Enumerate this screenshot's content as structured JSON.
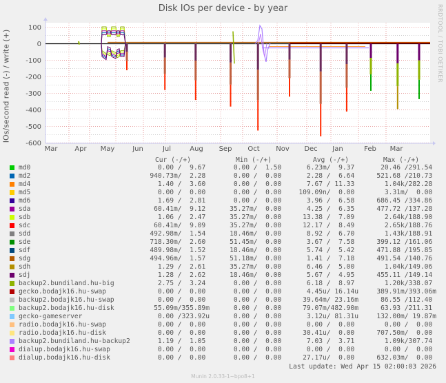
{
  "title": "Disk IOs per device - by year",
  "watermark": "RRDTOOL / TOBI OETIKER",
  "footer": "Munin 2.0.33-1~bpo8+1",
  "last_update": "Last update: Wed Apr 15 02:00:03 2026",
  "legend_headers": {
    "cur": "Cur (-/+)",
    "min": "Min (-/+)",
    "avg": "Avg (-/+)",
    "max": "Max (-/+)"
  },
  "colors": {
    "background": "#f0f0f0",
    "plot_bg": "#ffffff",
    "major_grid": "#e8a0a0",
    "minor_grid": "#d0d0d0",
    "axis": "#c8c8f0"
  },
  "chart_data": {
    "type": "line",
    "title": "Disk IOs per device - by year",
    "xlabel": "",
    "ylabel": "IOs/second read (-) / write (+)",
    "ylim": [
      -600,
      100
    ],
    "yticks": [
      100,
      0,
      -100,
      -200,
      -300,
      -400,
      -500,
      -600
    ],
    "xticks": [
      "Mar",
      "Apr",
      "May",
      "Jun",
      "Jul",
      "Aug",
      "Sep",
      "Oct",
      "Nov",
      "Dec",
      "Jan",
      "Feb",
      "Mar"
    ],
    "grid": true,
    "legend_position": "bottom",
    "spikes": [
      {
        "month_pos": 3.05,
        "read": -160,
        "write": 0
      },
      {
        "month_pos": 4.4,
        "read": -280,
        "write": 0
      },
      {
        "month_pos": 5.4,
        "read": -340,
        "write": 0
      },
      {
        "month_pos": 6.5,
        "read": -380,
        "write": 0
      },
      {
        "month_pos": 7.4,
        "read": -525,
        "write": 85
      },
      {
        "month_pos": 8.5,
        "read": -320,
        "write": 120
      },
      {
        "month_pos": 9.6,
        "read": -560,
        "write": 0
      },
      {
        "month_pos": 10.55,
        "read": -410,
        "write": 0
      },
      {
        "month_pos": 11.45,
        "read": -285,
        "write": 0
      },
      {
        "month_pos": 12.35,
        "read": -395,
        "write": 0
      },
      {
        "month_pos": 13.6,
        "read": -335,
        "write": 0
      }
    ],
    "series": [
      {
        "name": "md0",
        "color": "#00cc00",
        "cur": [
          "0.00",
          "9.67"
        ],
        "min": [
          "0.00",
          "1.50"
        ],
        "avg": [
          "6.23m",
          "9.37"
        ],
        "max": [
          "20.46",
          "291.54"
        ]
      },
      {
        "name": "md2",
        "color": "#0066b3",
        "cur": [
          "940.73m",
          "2.28"
        ],
        "min": [
          "0.00",
          "0.00"
        ],
        "avg": [
          "2.28",
          "6.64"
        ],
        "max": [
          "521.68",
          "210.73"
        ]
      },
      {
        "name": "md4",
        "color": "#ff8000",
        "cur": [
          "1.40",
          "3.60"
        ],
        "min": [
          "0.00",
          "0.00"
        ],
        "avg": [
          "7.67",
          "11.33"
        ],
        "max": [
          "1.04k",
          "282.28"
        ]
      },
      {
        "name": "md5",
        "color": "#ffcc00",
        "cur": [
          "0.00",
          "0.00"
        ],
        "min": [
          "0.00",
          "0.00"
        ],
        "avg": [
          "109.09n",
          "0.00"
        ],
        "max": [
          "3.31m",
          "0.00"
        ]
      },
      {
        "name": "md6",
        "color": "#330099",
        "cur": [
          "1.69",
          "2.81"
        ],
        "min": [
          "0.00",
          "0.00"
        ],
        "avg": [
          "3.96",
          "6.58"
        ],
        "max": [
          "686.45",
          "334.86"
        ]
      },
      {
        "name": "sda",
        "color": "#990099",
        "cur": [
          "60.41m",
          "9.12"
        ],
        "min": [
          "35.27m",
          "0.00"
        ],
        "avg": [
          "4.25",
          "6.35"
        ],
        "max": [
          "477.72",
          "137.28"
        ]
      },
      {
        "name": "sdb",
        "color": "#ccff00",
        "cur": [
          "1.06",
          "2.47"
        ],
        "min": [
          "35.27m",
          "0.00"
        ],
        "avg": [
          "13.38",
          "7.09"
        ],
        "max": [
          "2.64k",
          "188.90"
        ]
      },
      {
        "name": "sdc",
        "color": "#ff0000",
        "cur": [
          "60.41m",
          "9.09"
        ],
        "min": [
          "35.27m",
          "0.00"
        ],
        "avg": [
          "12.17",
          "8.49"
        ],
        "max": [
          "2.65k",
          "188.76"
        ]
      },
      {
        "name": "sdd",
        "color": "#808080",
        "cur": [
          "492.98m",
          "1.54"
        ],
        "min": [
          "18.46m",
          "0.00"
        ],
        "avg": [
          "8.92",
          "6.70"
        ],
        "max": [
          "1.43k",
          "188.91"
        ]
      },
      {
        "name": "sde",
        "color": "#008f00",
        "cur": [
          "718.30m",
          "2.60"
        ],
        "min": [
          "51.45m",
          "0.00"
        ],
        "avg": [
          "3.67",
          "7.58"
        ],
        "max": [
          "399.12",
          "161.06"
        ]
      },
      {
        "name": "sdf",
        "color": "#00487d",
        "cur": [
          "489.98m",
          "1.52"
        ],
        "min": [
          "18.46m",
          "0.00"
        ],
        "avg": [
          "5.74",
          "5.42"
        ],
        "max": [
          "471.88",
          "195.85"
        ]
      },
      {
        "name": "sdg",
        "color": "#b35a00",
        "cur": [
          "494.96m",
          "1.57"
        ],
        "min": [
          "51.18m",
          "0.00"
        ],
        "avg": [
          "1.41",
          "7.18"
        ],
        "max": [
          "491.54",
          "140.76"
        ]
      },
      {
        "name": "sdh",
        "color": "#b38f00",
        "cur": [
          "1.29",
          "2.61"
        ],
        "min": [
          "35.27m",
          "0.00"
        ],
        "avg": [
          "6.46",
          "5.00"
        ],
        "max": [
          "1.04k",
          "149.06"
        ]
      },
      {
        "name": "sdj",
        "color": "#6b006b",
        "cur": [
          "1.28",
          "2.62"
        ],
        "min": [
          "18.46m",
          "0.00"
        ],
        "avg": [
          "5.67",
          "4.95"
        ],
        "max": [
          "455.11",
          "149.14"
        ]
      },
      {
        "name": "backup2.bundiland.hu-big",
        "color": "#8fb300",
        "cur": [
          "2.75",
          "3.24"
        ],
        "min": [
          "0.00",
          "0.00"
        ],
        "avg": [
          "6.18",
          "8.97"
        ],
        "max": [
          "1.20k",
          "338.07"
        ]
      },
      {
        "name": "gecko.bodajk16.hu-swap",
        "color": "#b30000",
        "cur": [
          "0.00",
          "0.00"
        ],
        "min": [
          "0.00",
          "0.00"
        ],
        "avg": [
          "4.45u",
          "16.14u"
        ],
        "max": [
          "389.91m",
          "393.06m"
        ]
      },
      {
        "name": "backup2.bodajk16.hu-swap",
        "color": "#bebebe",
        "cur": [
          "0.00",
          "0.00"
        ],
        "min": [
          "0.00",
          "0.00"
        ],
        "avg": [
          "39.64m",
          "23.16m"
        ],
        "max": [
          "86.55",
          "112.40"
        ]
      },
      {
        "name": "backup2.bodajk16.hu-disk",
        "color": "#80ff80",
        "cur": [
          "55.09m",
          "355.89m"
        ],
        "min": [
          "0.00",
          "0.00"
        ],
        "avg": [
          "79.07m",
          "482.90m"
        ],
        "max": [
          "63.93",
          "211.31"
        ]
      },
      {
        "name": "gecko-gameserver",
        "color": "#80c9ff",
        "cur": [
          "0.00",
          "323.92u"
        ],
        "min": [
          "0.00",
          "0.00"
        ],
        "avg": [
          "3.12u",
          "81.31u"
        ],
        "max": [
          "132.00m",
          "19.87m"
        ]
      },
      {
        "name": "radio.bodajk16.hu-swap",
        "color": "#ffc080",
        "cur": [
          "0.00",
          "0.00"
        ],
        "min": [
          "0.00",
          "0.00"
        ],
        "avg": [
          "0.00",
          "0.00"
        ],
        "max": [
          "0.00",
          "0.00"
        ]
      },
      {
        "name": "radio.bodajk16.hu-disk",
        "color": "#ffe680",
        "cur": [
          "0.00",
          "0.00"
        ],
        "min": [
          "0.00",
          "0.00"
        ],
        "avg": [
          "30.41u",
          "0.00"
        ],
        "max": [
          "707.50m",
          "0.00"
        ]
      },
      {
        "name": "backup2.bundiland.hu-backup2",
        "color": "#aa80ff",
        "cur": [
          "1.19",
          "1.05"
        ],
        "min": [
          "0.00",
          "0.00"
        ],
        "avg": [
          "7.03",
          "3.71"
        ],
        "max": [
          "1.09k",
          "307.74"
        ]
      },
      {
        "name": "dialup.bodajk16.hu-swap",
        "color": "#ee00cc",
        "cur": [
          "0.00",
          "0.00"
        ],
        "min": [
          "0.00",
          "0.00"
        ],
        "avg": [
          "0.00",
          "0.00"
        ],
        "max": [
          "0.00",
          "0.00"
        ]
      },
      {
        "name": "dialup.bodajk16.hu-disk",
        "color": "#ff8080",
        "cur": [
          "0.00",
          "0.00"
        ],
        "min": [
          "0.00",
          "0.00"
        ],
        "avg": [
          "27.17u",
          "0.00"
        ],
        "max": [
          "632.03m",
          "0.00"
        ]
      }
    ]
  }
}
